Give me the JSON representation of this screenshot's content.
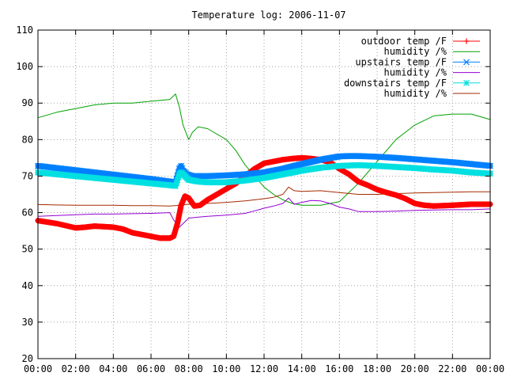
{
  "chart_data": {
    "type": "line",
    "title": "Temperature log: 2006-11-07",
    "xlabel": "",
    "ylabel": "",
    "xlim": [
      0,
      24
    ],
    "ylim": [
      20,
      110
    ],
    "x_ticks": [
      "00:00",
      "02:00",
      "04:00",
      "06:00",
      "08:00",
      "10:00",
      "12:00",
      "14:00",
      "16:00",
      "18:00",
      "20:00",
      "22:00",
      "00:00"
    ],
    "y_ticks": [
      "20",
      "30",
      "40",
      "50",
      "60",
      "70",
      "80",
      "90",
      "100",
      "110"
    ],
    "grid": true,
    "legend_position": "top-right",
    "series": [
      {
        "name": "outdoor temp /F",
        "color": "#ff0000",
        "marker": "plus",
        "x": [
          0,
          1,
          2,
          2.5,
          3,
          4,
          4.5,
          5,
          6,
          6.5,
          7,
          7.2,
          7.4,
          7.6,
          7.8,
          8,
          8.3,
          8.6,
          9,
          9.5,
          10,
          10.5,
          11,
          11.5,
          12,
          12.5,
          13,
          13.5,
          14,
          14.5,
          15,
          15.5,
          16,
          16.5,
          17,
          17.5,
          18,
          18.5,
          19,
          19.5,
          20,
          20.5,
          21,
          22,
          23,
          24
        ],
        "y": [
          57.8,
          57,
          55.8,
          56,
          56.3,
          56,
          55.5,
          54.5,
          53.5,
          53,
          53,
          53.5,
          57,
          62,
          64.5,
          64,
          61.8,
          62,
          63.5,
          65,
          66.5,
          68,
          70,
          72,
          73.5,
          74,
          74.5,
          74.8,
          75,
          74.8,
          74.5,
          73.8,
          72,
          70.5,
          68.5,
          67.5,
          66.3,
          65.5,
          64.8,
          63.8,
          62.5,
          62,
          61.8,
          62,
          62.3,
          62.3
        ]
      },
      {
        "name": "humidity /%",
        "color": "#00a000",
        "marker": "none",
        "x": [
          0,
          1,
          2,
          3,
          4,
          5,
          6,
          7,
          7.3,
          7.5,
          7.7,
          8,
          8.2,
          8.5,
          9,
          10,
          10.5,
          11,
          11.5,
          12,
          12.5,
          13,
          13.5,
          14,
          15,
          16,
          17,
          18,
          19,
          20,
          21,
          22,
          23,
          24
        ],
        "y": [
          86,
          87.5,
          88.5,
          89.5,
          90,
          90,
          90.5,
          91,
          92.5,
          89,
          84,
          80,
          82,
          83.5,
          83,
          80,
          77,
          73,
          70,
          67,
          65,
          63.5,
          62.5,
          62,
          62,
          63,
          68,
          74,
          80,
          84,
          86.5,
          87,
          87,
          85.5
        ]
      },
      {
        "name": "upstairs temp /F",
        "color": "#0080ff",
        "marker": "cross",
        "x": [
          0,
          1,
          2,
          3,
          4,
          5,
          6,
          7,
          7.3,
          7.5,
          7.6,
          7.7,
          7.9,
          8.2,
          9,
          10,
          11,
          12,
          13,
          14,
          15,
          16,
          16.5,
          17,
          18,
          19,
          20,
          21,
          22,
          23,
          24
        ],
        "y": [
          72.8,
          72.2,
          71.6,
          71,
          70.4,
          69.8,
          69.2,
          68.5,
          68.3,
          72,
          72.8,
          71.5,
          70.5,
          70,
          70,
          70.2,
          70.5,
          71,
          72,
          73.3,
          74.5,
          75.4,
          75.5,
          75.5,
          75.3,
          75,
          74.6,
          74.2,
          73.8,
          73.3,
          72.8
        ]
      },
      {
        "name": "humidity /%",
        "color": "#9400d3",
        "marker": "none",
        "x": [
          0,
          1,
          2,
          3,
          4,
          5,
          6,
          7,
          7.2,
          7.5,
          7.8,
          8,
          9,
          10,
          11,
          11.5,
          12,
          12.5,
          13,
          13.3,
          13.6,
          14,
          14.5,
          15,
          15.5,
          16,
          16.5,
          17,
          18,
          19,
          20,
          21,
          22,
          23,
          24
        ],
        "y": [
          59,
          59.2,
          59.4,
          59.6,
          59.6,
          59.7,
          59.8,
          60,
          58,
          56,
          57.5,
          58.5,
          59,
          59.3,
          59.8,
          60.5,
          61.2,
          61.8,
          62.5,
          64,
          62.3,
          62.8,
          63.3,
          63.2,
          62.5,
          61.5,
          61,
          60.3,
          60.3,
          60.4,
          60.6,
          60.7,
          60.8,
          60.8,
          61
        ]
      },
      {
        "name": "downstairs temp /F",
        "color": "#00e0e0",
        "marker": "star",
        "x": [
          0,
          1,
          2,
          3,
          4,
          5,
          6,
          7,
          7.3,
          7.5,
          7.6,
          7.8,
          8,
          8.5,
          9,
          10,
          11,
          12,
          13,
          14,
          15,
          16,
          17,
          18,
          19,
          20,
          21,
          22,
          23,
          24
        ],
        "y": [
          71,
          70.5,
          70,
          69.5,
          69,
          68.5,
          68,
          67.5,
          67.3,
          70.5,
          71,
          70,
          69,
          68.5,
          68.3,
          68.3,
          68.8,
          69.5,
          70.5,
          71.5,
          72.3,
          72.8,
          73,
          72.8,
          72.5,
          72.2,
          71.8,
          71.5,
          71,
          70.7
        ]
      },
      {
        "name": "humidity /%",
        "color": "#a52a00",
        "marker": "none",
        "x": [
          0,
          1,
          2,
          3,
          4,
          5,
          6,
          7,
          7.5,
          8,
          9,
          10,
          11,
          12,
          12.5,
          13,
          13.3,
          13.6,
          14,
          15,
          16,
          17,
          18,
          19,
          20,
          21,
          22,
          23,
          24
        ],
        "y": [
          62.2,
          62.1,
          62,
          62,
          62,
          61.9,
          61.9,
          61.8,
          62,
          62.3,
          62.5,
          62.8,
          63.2,
          63.8,
          64.2,
          65,
          67,
          66,
          65.8,
          66,
          65.5,
          65,
          65,
          65.2,
          65.4,
          65.5,
          65.6,
          65.7,
          65.7
        ]
      }
    ]
  }
}
